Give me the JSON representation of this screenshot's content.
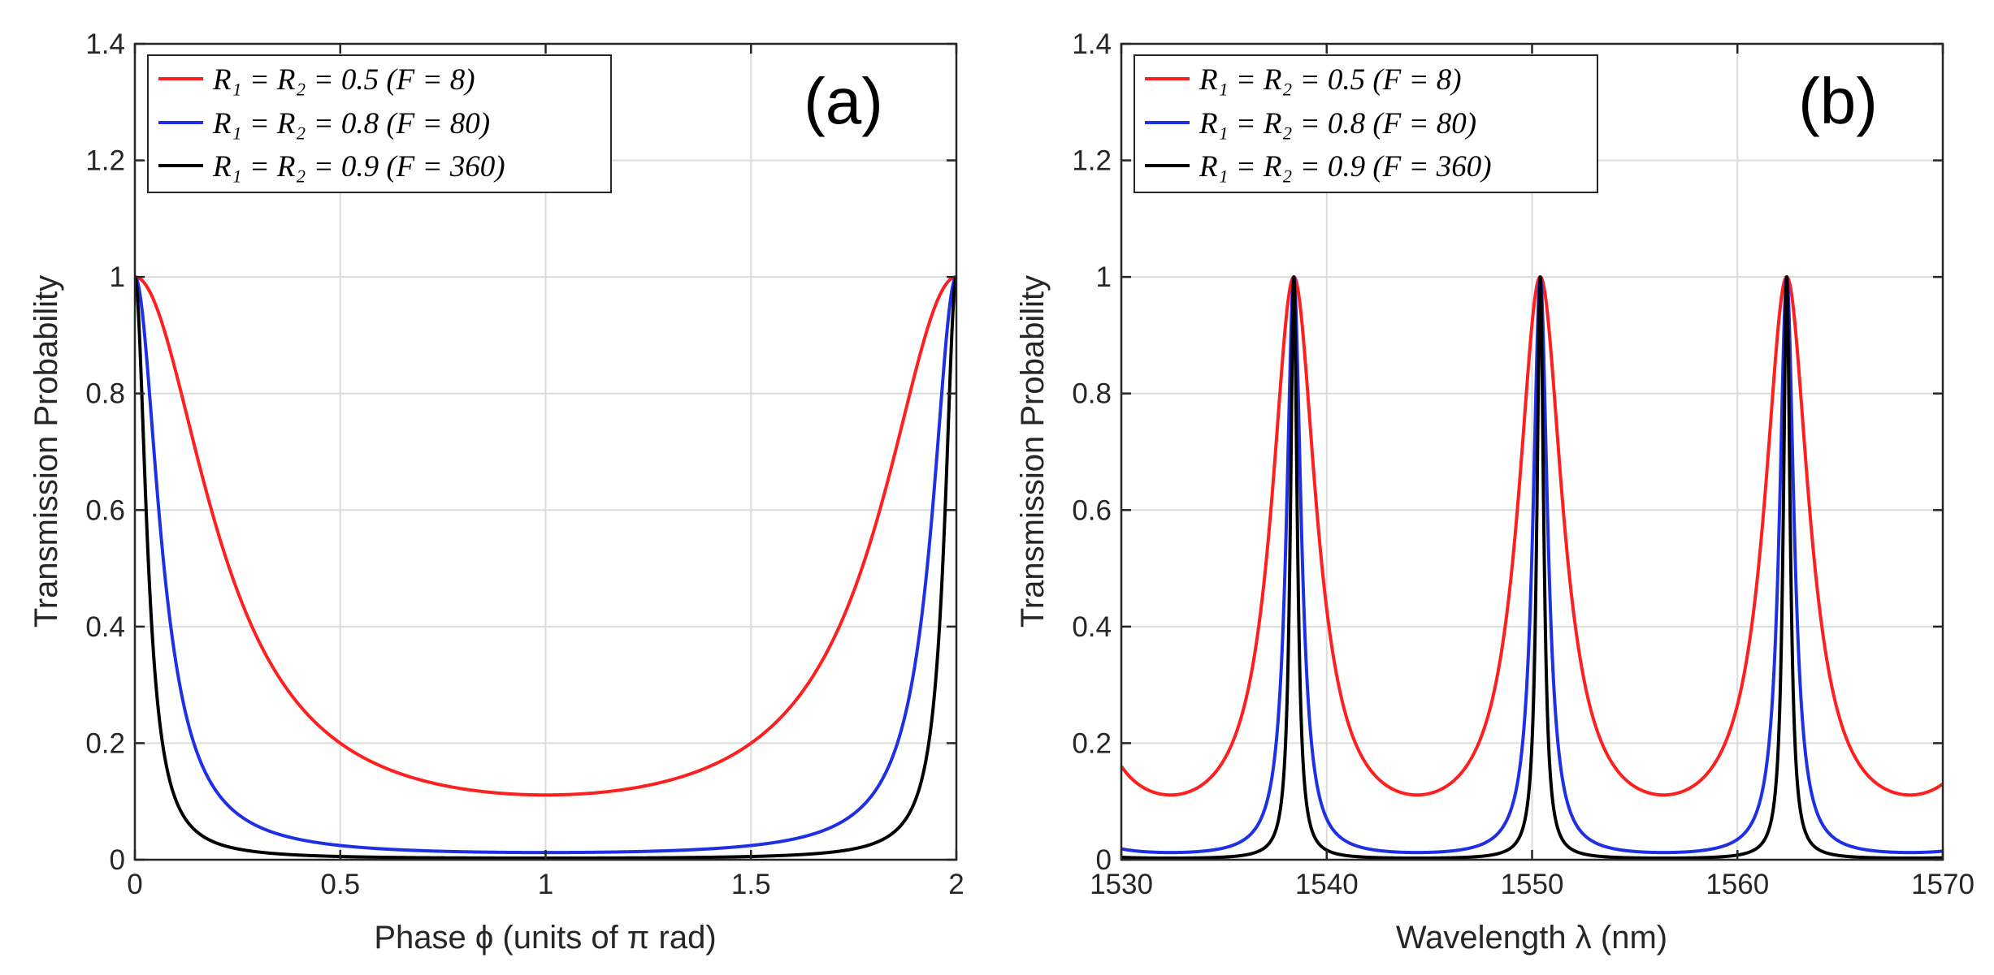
{
  "chart_data": [
    {
      "type": "line",
      "panel_label": "(a)",
      "title": "",
      "xlabel": "Phase ϕ (units of π rad)",
      "ylabel": "Transmission Probability",
      "xlim": [
        0,
        2
      ],
      "ylim": [
        0,
        1.4
      ],
      "xticks": [
        0,
        0.5,
        1,
        1.5,
        2
      ],
      "xtick_labels": [
        "0",
        "0.5",
        "1",
        "1.5",
        "2"
      ],
      "yticks": [
        0,
        0.2,
        0.4,
        0.6,
        0.8,
        1.0,
        1.2,
        1.4
      ],
      "ytick_labels": [
        "0",
        "0.2",
        "0.4",
        "0.6",
        "0.8",
        "1",
        "1.2",
        "1.4"
      ],
      "grid": true,
      "legend_position": "top-left",
      "model": "T = 1 / (1 + F sin^2(pi*phi/2)), phi in units of pi rad",
      "series": [
        {
          "name": "R₁ = R₂ = 0.5 (F = 8)",
          "F": 8,
          "color": "#ff1f1f",
          "x": [
            0,
            0.1,
            0.25,
            0.5,
            0.75,
            0.9,
            1.0,
            1.1,
            1.25,
            1.5,
            1.75,
            1.9,
            2.0
          ],
          "values": [
            1,
            0.837,
            0.461,
            0.111,
            0.461,
            0.837,
            1,
            0.837,
            0.461,
            0.111,
            0.461,
            0.837,
            1
          ]
        },
        {
          "name": "R₁ = R₂ = 0.8 (F = 80)",
          "F": 80,
          "color": "#1f2fe6",
          "x": [
            0,
            0.05,
            0.1,
            0.25,
            0.5,
            0.75,
            0.9,
            0.95,
            1.0,
            1.05,
            1.1,
            1.25,
            1.5,
            1.75,
            1.9,
            1.95,
            2.0
          ],
          "values": [
            1,
            0.398,
            0.142,
            0.022,
            0.012,
            0.022,
            0.142,
            0.398,
            1,
            0.398,
            0.142,
            0.022,
            0.012,
            0.022,
            0.142,
            0.398,
            1
          ]
        },
        {
          "name": "R₁ = R₂ = 0.9 (F = 360)",
          "F": 360,
          "color": "#000000",
          "x": [
            0,
            0.02,
            0.05,
            0.1,
            0.25,
            0.5,
            0.75,
            0.9,
            0.95,
            0.98,
            1.0,
            1.02,
            1.05,
            1.1,
            1.25,
            1.5,
            1.75,
            1.9,
            1.95,
            1.98,
            2.0
          ],
          "values": [
            1,
            0.362,
            0.128,
            0.035,
            0.005,
            0.003,
            0.005,
            0.035,
            0.128,
            0.362,
            1,
            0.362,
            0.128,
            0.035,
            0.005,
            0.003,
            0.005,
            0.035,
            0.128,
            0.362,
            1
          ]
        }
      ]
    },
    {
      "type": "line",
      "panel_label": "(b)",
      "title": "",
      "xlabel": "Wavelength λ (nm)",
      "ylabel": "Transmission Probability",
      "xlim": [
        1530,
        1570
      ],
      "ylim": [
        0,
        1.4
      ],
      "xticks": [
        1530,
        1540,
        1550,
        1560,
        1570
      ],
      "xtick_labels": [
        "1530",
        "1540",
        "1550",
        "1560",
        "1570"
      ],
      "yticks": [
        0,
        0.2,
        0.4,
        0.6,
        0.8,
        1.0,
        1.2,
        1.4
      ],
      "ytick_labels": [
        "0",
        "0.2",
        "0.4",
        "0.6",
        "0.8",
        "1",
        "1.2",
        "1.4"
      ],
      "grid": true,
      "legend_position": "top-left",
      "model": "T = 1 / (1 + F sin^2(pi*(lambda - 1538.4)/12)), resonance peaks at 1538.4, 1550.4, 1562.4 nm",
      "peaks_nm": [
        1538.4,
        1550.4,
        1562.4
      ],
      "series": [
        {
          "name": "R₁ = R₂ = 0.5 (F = 8)",
          "F": 8,
          "color": "#ff1f1f",
          "x": [
            1530,
            1532.4,
            1538.4,
            1544.4,
            1550.4,
            1556.4,
            1562.4,
            1568.4,
            1570
          ],
          "values": [
            0.17,
            0.111,
            1,
            0.111,
            1,
            0.111,
            1,
            0.111,
            0.125
          ]
        },
        {
          "name": "R₁ = R₂ = 0.8 (F = 80)",
          "F": 80,
          "color": "#1f2fe6",
          "x": [
            1530,
            1532.4,
            1538.4,
            1544.4,
            1550.4,
            1556.4,
            1562.4,
            1568.4,
            1570
          ],
          "values": [
            0.021,
            0.012,
            1,
            0.012,
            1,
            0.012,
            1,
            0.012,
            0.014
          ]
        },
        {
          "name": "R₁ = R₂ = 0.9 (F = 360)",
          "F": 360,
          "color": "#000000",
          "x": [
            1530,
            1532.4,
            1538.4,
            1544.4,
            1550.4,
            1556.4,
            1562.4,
            1568.4,
            1570
          ],
          "values": [
            0.005,
            0.003,
            1,
            0.003,
            1,
            0.003,
            1,
            0.003,
            0.003
          ]
        }
      ]
    }
  ]
}
